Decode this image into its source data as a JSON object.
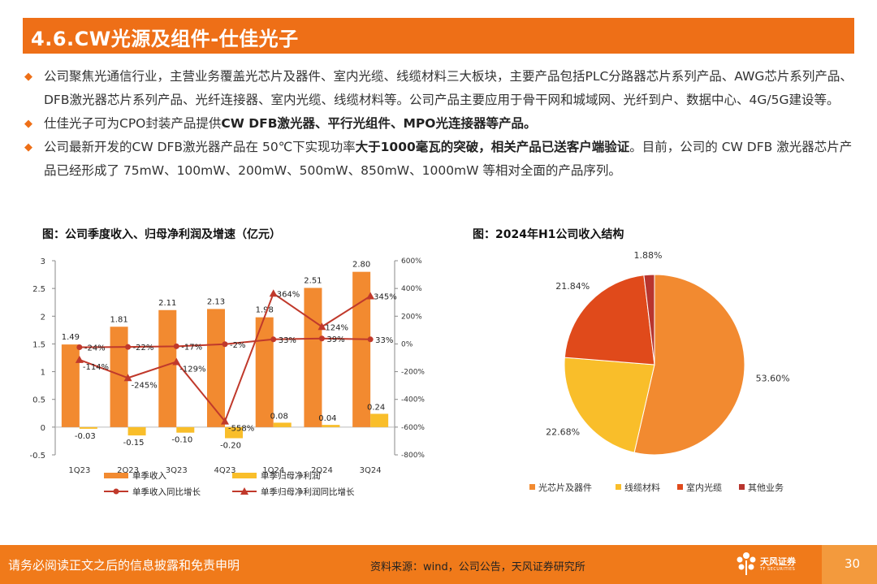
{
  "header": {
    "title": "4.6.CW光源及组件-仕佳光子"
  },
  "bullets": [
    {
      "pre": "公司聚焦光通信行业，主营业务覆盖光芯片及器件、室内光缆、线缆材料三大板块，主要产品包括PLC分路器芯片系列产品、AWG芯片系列产品、DFB激光器芯片系列产品、光纤连接器、室内光缆、线缆材料等。公司产品主要应用于骨干网和城域网、光纤到户、数据中心、4G/5G建设等。",
      "bold": "",
      "post": ""
    },
    {
      "pre": "仕佳光子可为CPO封装产品提供",
      "bold": "CW DFB激光器、平行光组件、MPO光连接器等产品。",
      "post": ""
    },
    {
      "pre": "公司最新开发的CW DFB激光器产品在 50℃下实现功率",
      "bold": "大于1000毫瓦的突破，相关产品已送客户端验证",
      "post": "。目前，公司的 CW DFB 激光器芯片产品已经形成了 75mW、100mW、200mW、500mW、850mW、1000mW 等相对全面的产品序列。"
    }
  ],
  "figure_left_title": "图：公司季度收入、归母净利润及增速（亿元）",
  "figure_right_title": "图：2024年H1公司收入结构",
  "colors": {
    "accent": "#EE6F17",
    "bar_revenue": "#F28A30",
    "bar_profit": "#F9BE2A",
    "line": "#C0392B",
    "pie_slices": [
      "#F28A30",
      "#F9BE2A",
      "#E04A1B",
      "#B8352E"
    ]
  },
  "chart_data": [
    {
      "type": "bar",
      "categories": [
        "1Q23",
        "2Q23",
        "3Q23",
        "4Q23",
        "1Q24",
        "2Q24",
        "3Q24"
      ],
      "series": [
        {
          "name": "单季收入",
          "axis": "left",
          "kind": "bar",
          "values": [
            1.49,
            1.81,
            2.11,
            2.13,
            1.98,
            2.51,
            2.8
          ],
          "labels": [
            "1.49",
            "1.81",
            "2.11",
            "2.13",
            "1.98",
            "2.51",
            "2.80"
          ]
        },
        {
          "name": "单季归母净利润",
          "axis": "left",
          "kind": "bar",
          "values": [
            -0.03,
            -0.15,
            -0.1,
            -0.2,
            0.08,
            0.04,
            0.24
          ],
          "labels": [
            "-0.03",
            "-0.15",
            "-0.10",
            "-0.20",
            "0.08",
            "0.04",
            "0.24"
          ]
        },
        {
          "name": "单季收入同比增长",
          "axis": "right",
          "kind": "line",
          "values": [
            -24,
            -22,
            -17,
            -2,
            33,
            39,
            33
          ],
          "labels": [
            "-24%",
            "-22%",
            "-17%",
            "-2%",
            "33%",
            "39%",
            "33%"
          ]
        },
        {
          "name": "单季归母净利润同比增长",
          "axis": "right",
          "kind": "line",
          "values": [
            -114,
            -245,
            -129,
            -558,
            364,
            124,
            345
          ],
          "labels": [
            "-114%",
            "-245%",
            "-129%",
            "-558%",
            "364%",
            "124%",
            "345%"
          ]
        }
      ],
      "ylim": [
        -0.5,
        3
      ],
      "y2lim": [
        -800,
        600
      ],
      "yticks": [
        "3",
        "2.5",
        "2",
        "1.5",
        "1",
        "0.5",
        "0",
        "-0.5"
      ],
      "y2ticks": [
        "600%",
        "400%",
        "200%",
        "0%",
        "-200%",
        "-400%",
        "-600%",
        "-800%"
      ],
      "legend_position": "bottom"
    },
    {
      "type": "pie",
      "categories": [
        "光芯片及器件",
        "线缆材料",
        "室内光缆",
        "其他业务"
      ],
      "values": [
        53.6,
        22.68,
        21.84,
        1.88
      ],
      "labels": [
        "53.60%",
        "22.68%",
        "21.84%",
        "1.88%"
      ],
      "legend_position": "bottom"
    }
  ],
  "footer": {
    "disclaimer": "请务必阅读正文之后的信息披露和免责申明",
    "source": "资料来源：wind，公司公告，天风证券研究所",
    "logo_text": "天风证券",
    "logo_sub": "TF SECURITIES",
    "page": "30"
  }
}
